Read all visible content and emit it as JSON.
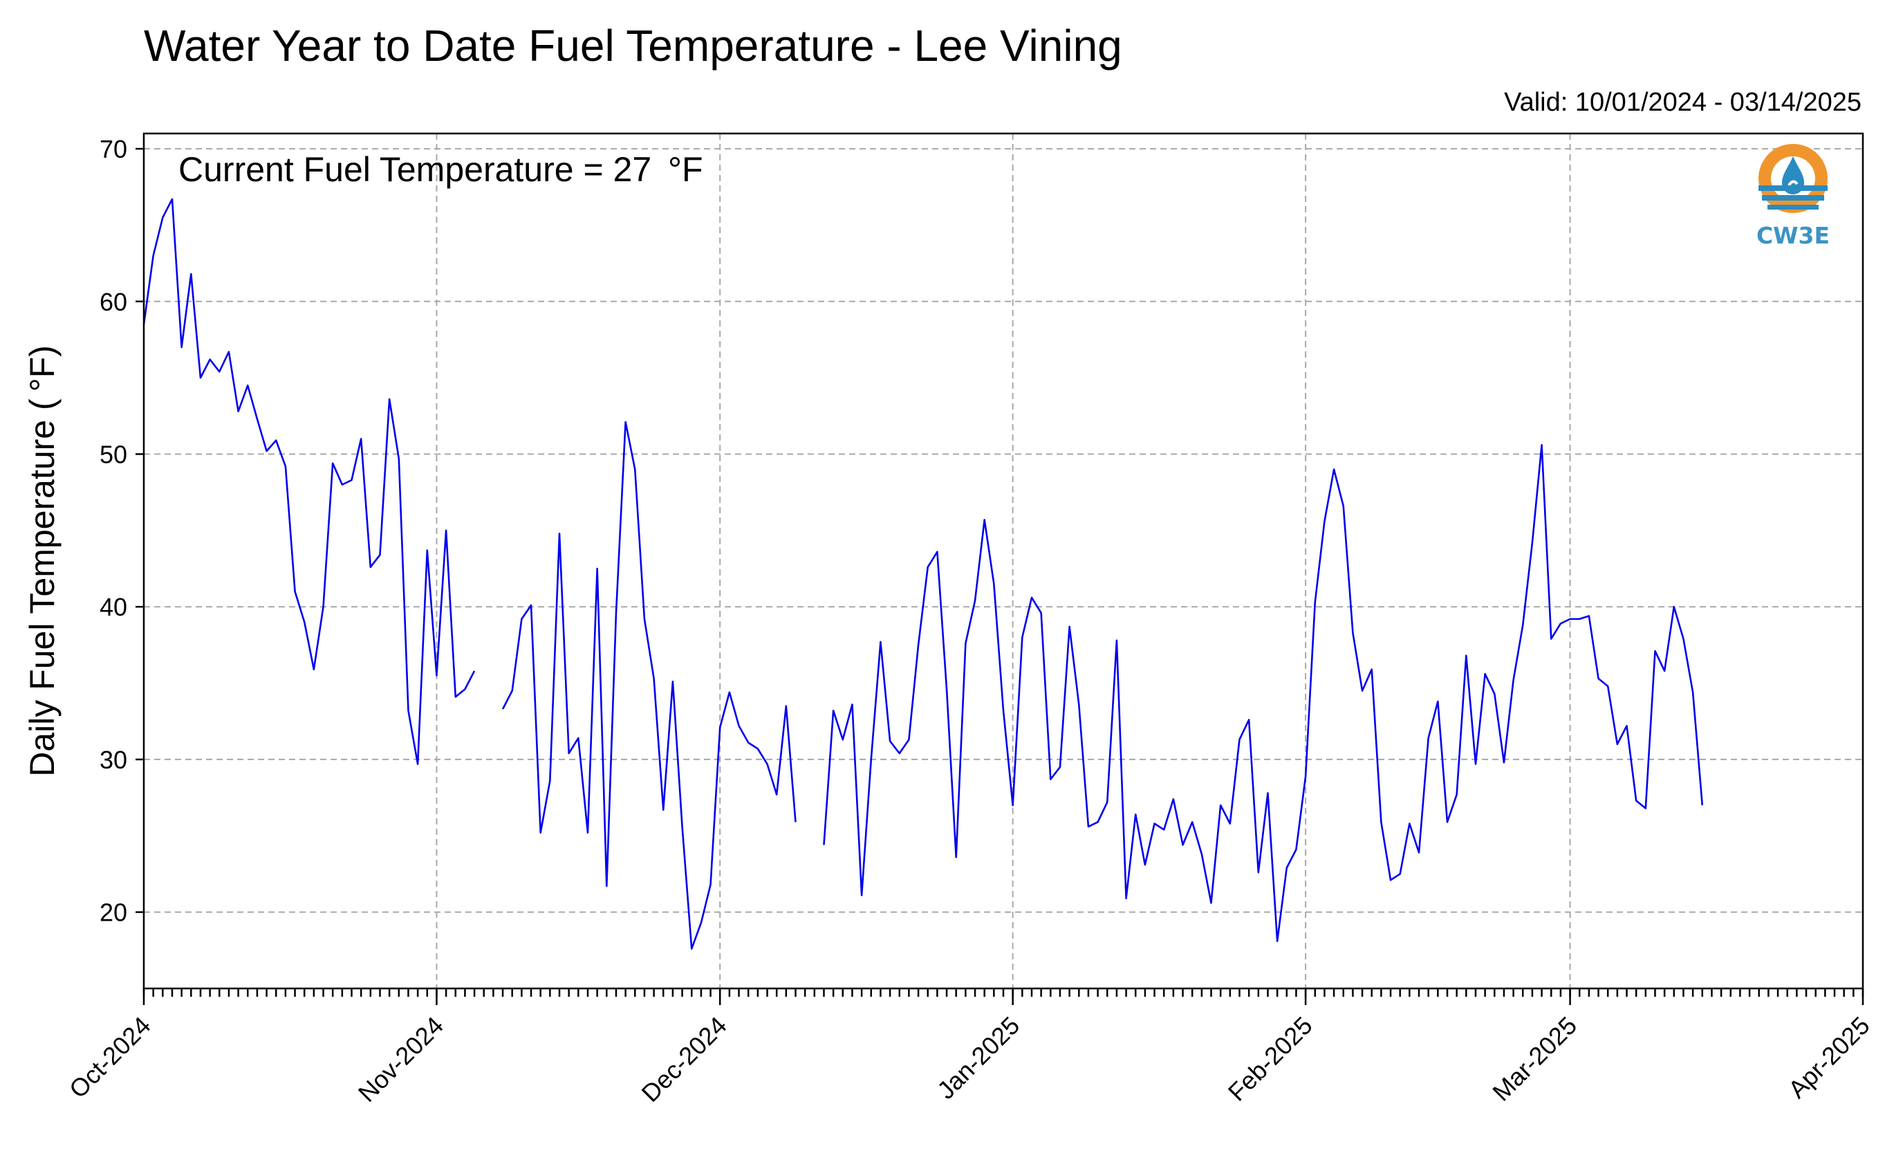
{
  "chart_data": {
    "type": "line",
    "title": "Water Year to Date Fuel Temperature - Lee Vining",
    "subtitle": "Valid: 10/01/2024 - 03/14/2025",
    "annotation": "Current Fuel Temperature = 27  °F",
    "xlabel": "",
    "ylabel": "Daily Fuel Temperature ( °F)",
    "xlim": [
      "2024-10-01",
      "2025-04-01"
    ],
    "ylim": [
      15,
      71
    ],
    "grid": true,
    "x_ticks": [
      "Oct-2024",
      "Nov-2024",
      "Dec-2024",
      "Jan-2025",
      "Feb-2025",
      "Mar-2025",
      "Apr-2025"
    ],
    "x_tick_dates": [
      "2024-10-01",
      "2024-11-01",
      "2024-12-01",
      "2025-01-01",
      "2025-02-01",
      "2025-03-01",
      "2025-04-01"
    ],
    "y_ticks": [
      20,
      30,
      40,
      50,
      60,
      70
    ],
    "series": [
      {
        "color": "#0000ee",
        "start_date": "2024-10-01",
        "values": [
          58.5,
          63,
          65.5,
          66.7,
          57,
          61.8,
          55,
          56.2,
          55.4,
          56.7,
          52.8,
          54.5,
          52.3,
          50.2,
          50.9,
          49.2,
          41,
          39,
          35.9,
          40,
          49.4,
          48,
          48.3,
          51,
          42.6,
          43.4,
          53.6,
          49.7,
          33.2,
          29.7,
          43.7,
          35.5,
          45,
          34.1,
          34.6,
          35.8,
          null,
          null,
          33.3,
          34.5,
          39.2,
          40.1,
          25.2,
          28.6,
          44.8,
          30.4,
          31.4,
          25.2,
          42.5,
          21.7,
          39.6,
          52.1,
          49,
          39.2,
          35.3,
          26.7,
          35.1,
          25.6,
          17.6,
          19.3,
          21.8,
          32.1,
          34.4,
          32.2,
          31.1,
          30.7,
          29.7,
          27.7,
          33.5,
          25.9,
          null,
          null,
          24.4,
          33.2,
          31.3,
          33.6,
          21.1,
          30,
          37.7,
          31.2,
          30.4,
          31.3,
          37.5,
          42.6,
          43.6,
          34.6,
          23.6,
          37.6,
          40.4,
          45.7,
          41.5,
          33.2,
          27,
          38,
          40.6,
          39.6,
          28.7,
          29.5,
          38.7,
          33.6,
          25.6,
          25.9,
          27.2,
          37.8,
          20.9,
          26.4,
          23.1,
          25.8,
          25.4,
          27.4,
          24.4,
          25.9,
          23.8,
          20.6,
          27,
          25.8,
          31.3,
          32.6,
          22.6,
          27.8,
          18.1,
          22.9,
          24.1,
          28.9,
          40.3,
          45.6,
          49,
          46.6,
          38.3,
          34.5,
          35.9,
          25.9,
          22.1,
          22.5,
          25.8,
          23.9,
          31.4,
          33.8,
          25.9,
          27.7,
          36.8,
          29.7,
          35.6,
          34.3,
          29.8,
          35.2,
          38.8,
          44.2,
          50.6,
          37.9,
          38.9,
          39.2,
          39.2,
          39.4,
          35.3,
          34.8,
          31,
          32.2,
          27.3,
          26.8,
          37.1,
          35.8,
          40,
          37.9,
          34.4,
          27
        ]
      }
    ]
  },
  "logo": {
    "label": "CW3E",
    "ring_color": "#f0952e",
    "wave_color": "#2a8bc0",
    "text_color": "#3a94c4"
  }
}
